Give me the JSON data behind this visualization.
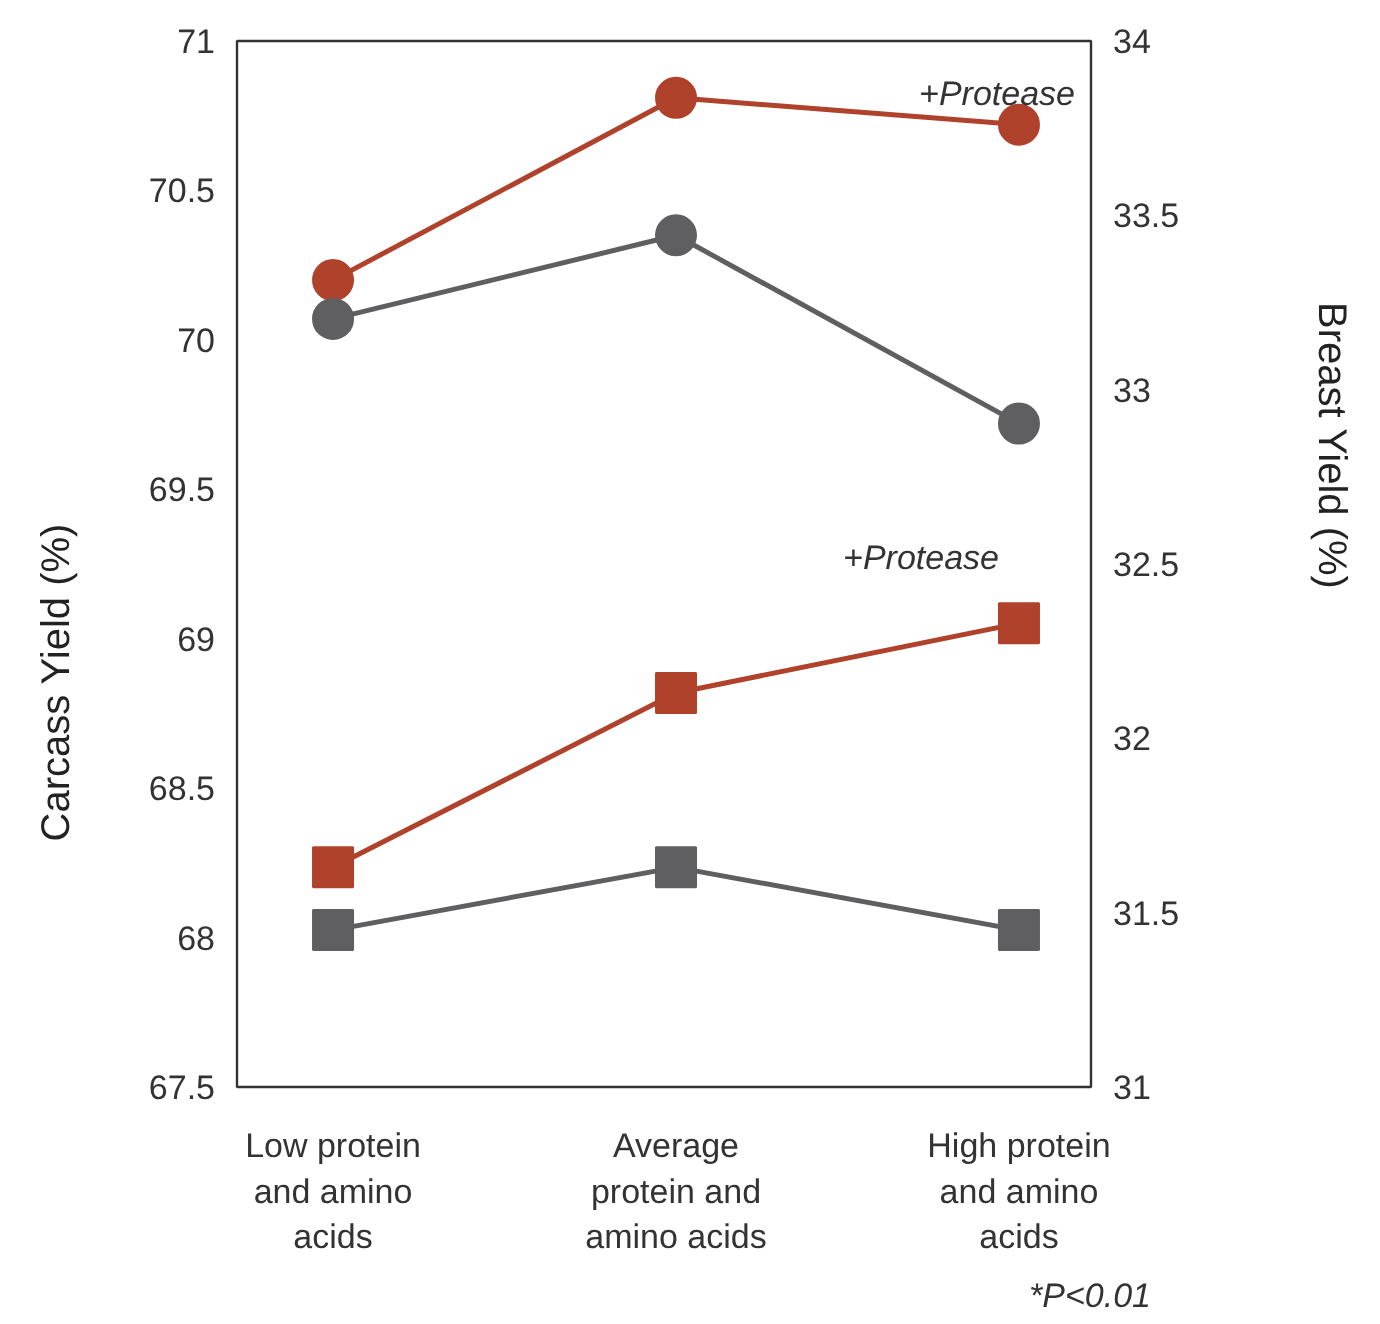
{
  "chart_data": {
    "type": "line",
    "categories": [
      "Low protein and amino acids",
      "Average protein and amino acids",
      "High protein and amino acids"
    ],
    "ylabel": "Carcass Yield (%)",
    "y2label": "Breast Yield (%)",
    "series": [
      {
        "color": "#b0412a",
        "marker": "circle",
        "values": [
          70.2,
          70.81,
          70.72
        ]
      },
      {
        "color": "#5f5f61",
        "marker": "circle",
        "values": [
          70.07,
          70.35,
          69.72
        ]
      },
      {
        "color": "#b0412a",
        "marker": "square",
        "axis": "y2",
        "values": [
          31.63,
          32.13,
          32.33
        ]
      },
      {
        "color": "#5f5f61",
        "marker": "square",
        "axis": "y2",
        "values": [
          31.45,
          31.63,
          31.45
        ]
      }
    ],
    "ylim": [
      67.5,
      71
    ],
    "yticks": [
      67.5,
      68,
      68.5,
      69,
      69.5,
      70,
      70.5,
      71
    ],
    "y2lim": [
      31,
      34
    ],
    "y2ticks": [
      31,
      31.5,
      32,
      32.5,
      33,
      33.5,
      34
    ],
    "annotations": [
      "+Protease",
      "+Protease",
      "*P<0.01"
    ],
    "grid": false
  }
}
